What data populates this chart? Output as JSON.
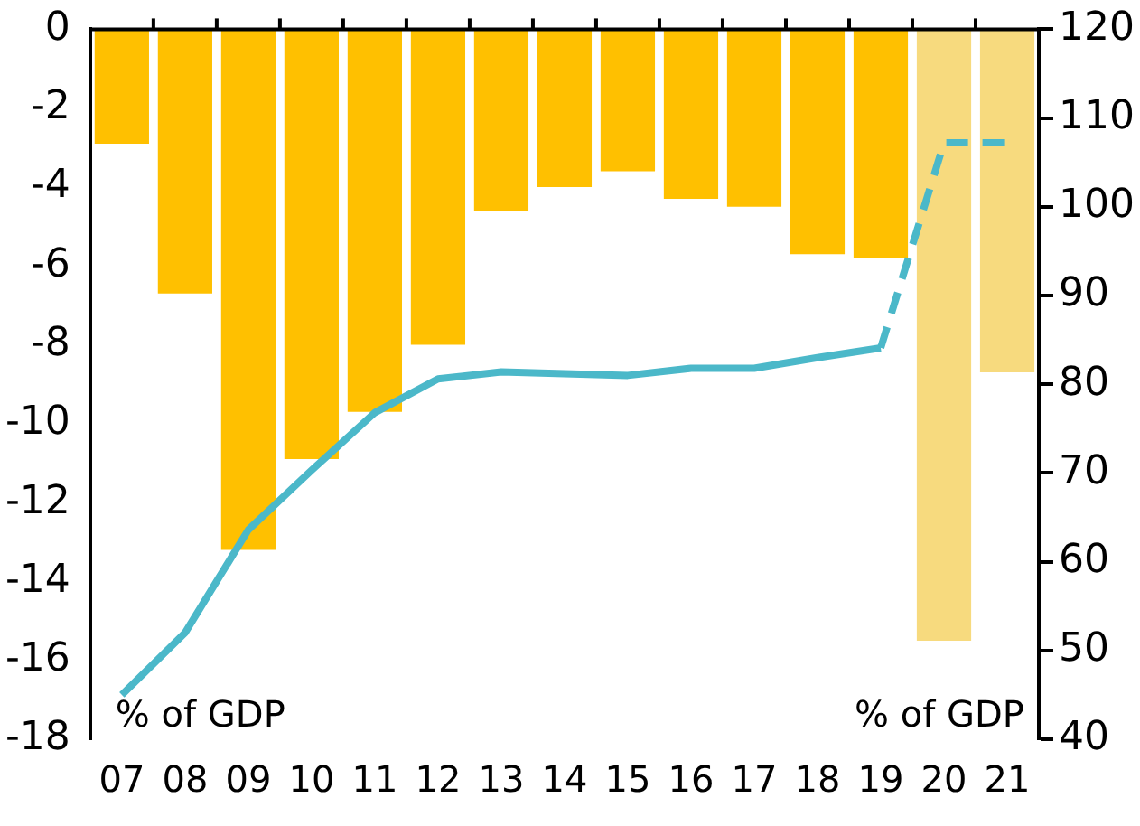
{
  "chart_data": {
    "type": "bar",
    "categories": [
      "07",
      "08",
      "09",
      "10",
      "11",
      "12",
      "13",
      "14",
      "15",
      "16",
      "17",
      "18",
      "19",
      "20",
      "21"
    ],
    "series": [
      {
        "colors": [
          "#ffc000",
          "#ffc000",
          "#ffc000",
          "#ffc000",
          "#ffc000",
          "#ffc000",
          "#ffc000",
          "#ffc000",
          "#ffc000",
          "#ffc000",
          "#ffc000",
          "#ffc000",
          "#ffc000",
          "#f7da7e",
          "#f7da7e"
        ],
        "values": [
          -2.9,
          -6.7,
          -13.2,
          -10.9,
          -9.7,
          -8.0,
          -4.6,
          -4.0,
          -3.6,
          -4.3,
          -4.5,
          -5.7,
          -5.8,
          -15.5,
          -8.7
        ]
      },
      {
        "type": "line",
        "axis": "y2",
        "color": "#4bb8c9",
        "line_style": "solid",
        "values": [
          45,
          52,
          63.6,
          70.3,
          76.8,
          80.6,
          81.4,
          81.2,
          81.0,
          81.8,
          81.8,
          83.0,
          84.1,
          null,
          null
        ]
      },
      {
        "type": "line",
        "axis": "y2",
        "color": "#4bb8c9",
        "line_style": "dashed",
        "values": [
          null,
          null,
          null,
          null,
          null,
          null,
          null,
          null,
          null,
          null,
          null,
          null,
          84.1,
          107.2,
          107.2
        ]
      }
    ],
    "ylim": [
      -18,
      0
    ],
    "yticks": [
      -18,
      -16,
      -14,
      -12,
      -10,
      -8,
      -6,
      -4,
      -2,
      0
    ],
    "y2lim": [
      40,
      120
    ],
    "y2ticks": [
      40,
      50,
      60,
      70,
      80,
      90,
      100,
      110,
      120
    ],
    "annotations": [
      "% of GDP",
      "% of GDP"
    ],
    "grid": false,
    "legend": false,
    "marker": "none"
  }
}
